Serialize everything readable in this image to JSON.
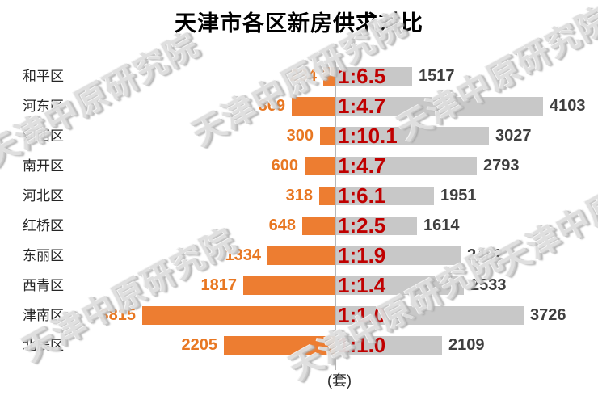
{
  "title": "天津市各区新房供求对比",
  "axis_unit_label": "(套)",
  "watermark": {
    "text": "天津中原研究院"
  },
  "colors": {
    "left_bar": "#ED7D31",
    "right_bar": "#C8C8C8",
    "ratio_text": "#C00000",
    "left_value_text": "#E87722",
    "right_value_text": "#3F3F3F",
    "axis_line": "#B7B7B7"
  },
  "chart_data": {
    "type": "bar",
    "subtype": "diverging-horizontal",
    "title": "天津市各区新房供求对比",
    "unit_label": "(套)",
    "legend": "none",
    "center_divider": true,
    "categories": [
      "和平区",
      "河东区",
      "河西区",
      "南开区",
      "河北区",
      "红桥区",
      "东丽区",
      "西青区",
      "津南区",
      "北辰区"
    ],
    "series": [
      {
        "name": "left-orange-bars",
        "values": [
          234,
          869,
          300,
          600,
          318,
          648,
          1334,
          1817,
          3815,
          2205
        ]
      },
      {
        "name": "right-gray-bars",
        "values": [
          1517,
          4103,
          3027,
          2793,
          1951,
          1614,
          2482,
          2533,
          3726,
          2109
        ]
      }
    ],
    "ratio_labels": [
      "1:6.5",
      "1:4.7",
      "1:10.1",
      "1:4.7",
      "1:6.1",
      "1:2.5",
      "1:1.9",
      "1:1.4",
      "1:1.0",
      "1:1.0"
    ]
  }
}
